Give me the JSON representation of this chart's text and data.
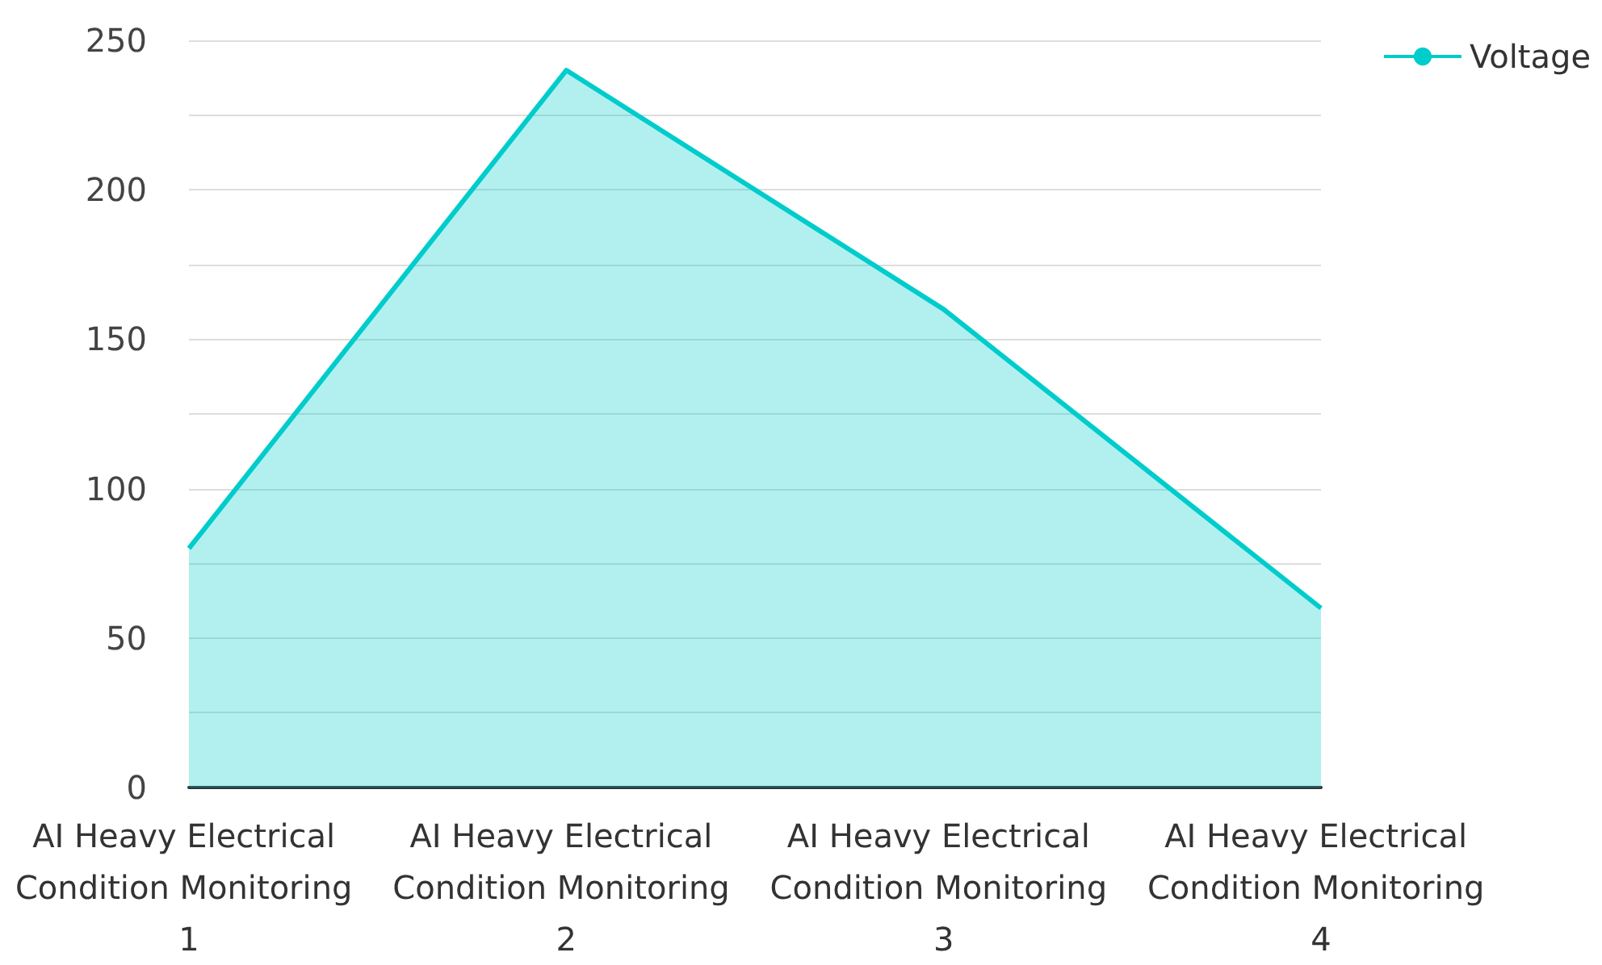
{
  "chart_data": {
    "type": "area",
    "categories": [
      "AI Heavy Electrical Condition Monitoring 1",
      "AI Heavy Electrical Condition Monitoring 2",
      "AI Heavy Electrical Condition Monitoring 3",
      "AI Heavy Electrical Condition Monitoring 4"
    ],
    "series": [
      {
        "name": "Voltage",
        "color": "#00cccc",
        "values": [
          80,
          240,
          160,
          60
        ]
      }
    ],
    "ylim": [
      0,
      250
    ],
    "yticks": [
      0,
      {
        "value": 25,
        "label": null
      },
      50,
      {
        "value": 75,
        "label": null
      },
      100,
      {
        "value": 125,
        "label": null
      },
      150,
      {
        "value": 175,
        "label": null
      },
      200,
      {
        "value": 225,
        "label": null
      },
      250
    ],
    "grid": "y",
    "legend": "top right",
    "marker": "none"
  }
}
